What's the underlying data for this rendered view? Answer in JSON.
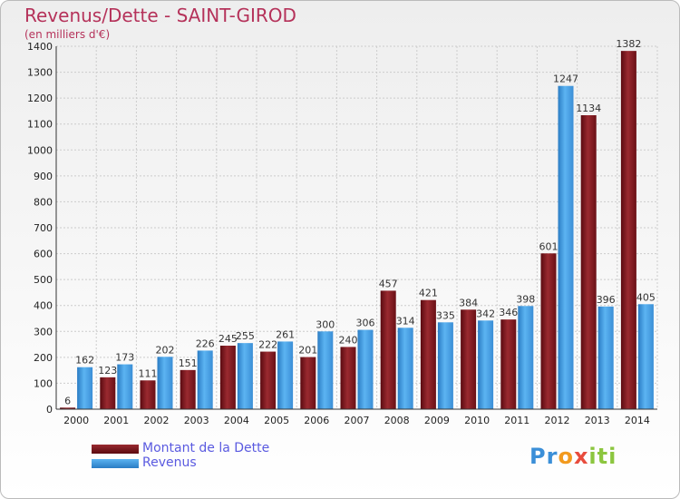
{
  "header": {
    "title": "Revenus/Dette - SAINT-GIROD",
    "subtitle": "(en milliers d'€)"
  },
  "logo": {
    "text": "Proxiti",
    "part1": "Pr",
    "part2": "o",
    "part3": "x",
    "part4": "iti"
  },
  "colors": {
    "debt": "#8b1c24",
    "revenue": "#4aa3e8",
    "title": "#b5325a",
    "legend_text": "#5a5ae0"
  },
  "chart_data": {
    "type": "bar",
    "title": "Revenus/Dette - SAINT-GIROD",
    "subtitle": "(en milliers d'€)",
    "categories": [
      "2000",
      "2001",
      "2002",
      "2003",
      "2004",
      "2005",
      "2006",
      "2007",
      "2008",
      "2009",
      "2010",
      "2011",
      "2012",
      "2013",
      "2014"
    ],
    "series": [
      {
        "name": "Montant de la Dette",
        "values": [
          6,
          123,
          111,
          151,
          245,
          222,
          201,
          240,
          457,
          421,
          384,
          346,
          601,
          1134,
          1382
        ]
      },
      {
        "name": "Revenus",
        "values": [
          162,
          173,
          202,
          226,
          255,
          261,
          300,
          306,
          314,
          335,
          342,
          398,
          1247,
          396,
          405
        ]
      }
    ],
    "ylim": [
      0,
      1400
    ],
    "yticks": [
      0,
      100,
      200,
      300,
      400,
      500,
      600,
      700,
      800,
      900,
      1000,
      1100,
      1200,
      1300,
      1400
    ],
    "grid": true,
    "legend_position": "bottom-left"
  }
}
